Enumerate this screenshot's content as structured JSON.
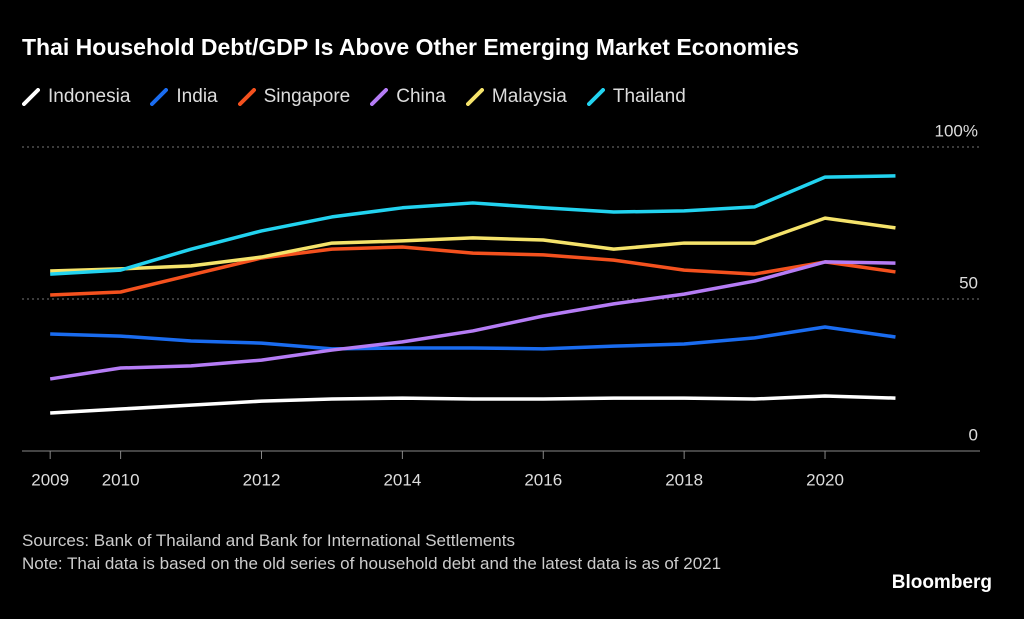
{
  "chart_data": {
    "type": "line",
    "title": "Thai Household Debt/GDP Is Above Other Emerging Market Economies",
    "x": [
      2009,
      2010,
      2011,
      2012,
      2013,
      2014,
      2015,
      2016,
      2017,
      2018,
      2019,
      2020,
      2021
    ],
    "series": [
      {
        "name": "Indonesia",
        "color": "#ffffff",
        "values": [
          12.5,
          13.8,
          15.1,
          16.4,
          17.1,
          17.4,
          17.1,
          17.1,
          17.4,
          17.4,
          17.1,
          18.1,
          17.4
        ]
      },
      {
        "name": "India",
        "color": "#1a6cf0",
        "values": [
          38.5,
          37.8,
          36.2,
          35.5,
          33.6,
          33.9,
          33.9,
          33.6,
          34.5,
          35.2,
          37.2,
          40.8,
          37.5
        ]
      },
      {
        "name": "Singapore",
        "color": "#f4511e",
        "values": [
          51.3,
          52.3,
          57.9,
          63.5,
          66.4,
          67.1,
          65.1,
          64.5,
          62.8,
          59.5,
          58.2,
          62.2,
          58.9
        ]
      },
      {
        "name": "China",
        "color": "#b57cf5",
        "values": [
          23.7,
          27.3,
          28.0,
          29.9,
          33.2,
          35.9,
          39.5,
          44.4,
          48.4,
          51.6,
          55.9,
          62.2,
          61.8
        ]
      },
      {
        "name": "Malaysia",
        "color": "#f5e36b",
        "values": [
          59.2,
          59.9,
          60.9,
          63.8,
          68.4,
          69.1,
          70.1,
          69.4,
          66.4,
          68.4,
          68.4,
          76.6,
          73.4
        ]
      },
      {
        "name": "Thailand",
        "color": "#22d3f0",
        "values": [
          58.2,
          59.5,
          66.4,
          72.4,
          77.0,
          80.0,
          81.6,
          80.0,
          78.6,
          79.0,
          80.3,
          90.1,
          90.5
        ]
      }
    ],
    "xlim": [
      2008.6,
      2022.2
    ],
    "xticks": [
      2009,
      2010,
      2012,
      2014,
      2016,
      2018,
      2020
    ],
    "ylim": [
      0,
      100
    ],
    "yticks": [
      0,
      50,
      {
        "value": 100,
        "label": "100%"
      }
    ],
    "grid": true,
    "sources": "Sources: Bank of Thailand and Bank for International Settlements",
    "note": "Note: Thai data is based on the old series of household debt and the latest data is as of 2021",
    "brand": "Bloomberg"
  }
}
